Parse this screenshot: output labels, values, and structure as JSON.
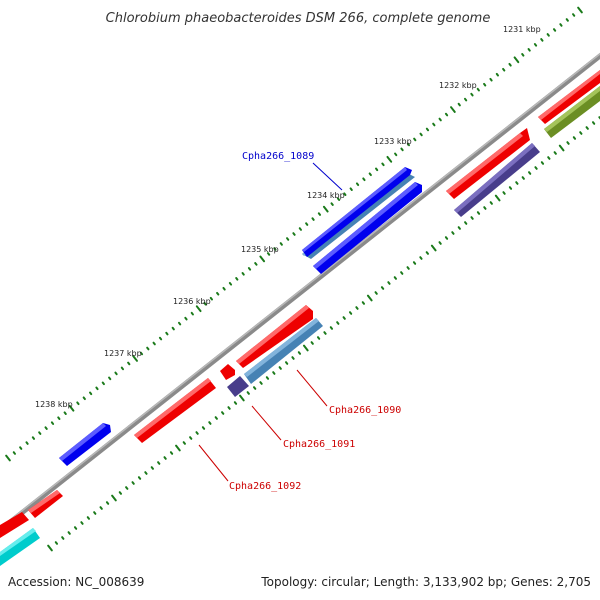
{
  "title": "Chlorobium phaeobacteroides DSM 266, complete genome",
  "footer": {
    "accession": "Accession: NC_008639",
    "summary": "Topology: circular; Length: 3,133,902 bp; Genes: 2,705"
  },
  "scale": {
    "kbp_labels": [
      "1231 kbp",
      "1232 kbp",
      "1233 kbp",
      "1234 kbp",
      "1235 kbp",
      "1236 kbp",
      "1237 kbp",
      "1238 kbp"
    ]
  },
  "gene_labels": [
    {
      "text": "Cpha266_1089",
      "color": "#0000cc"
    },
    {
      "text": "Cpha266_1090",
      "color": "#cc0000"
    },
    {
      "text": "Cpha266_1091",
      "color": "#cc0000"
    },
    {
      "text": "Cpha266_1092",
      "color": "#cc0000"
    }
  ],
  "colors": {
    "backbone": "#888888",
    "tick": "#1a7a1a",
    "red": "#ee0000",
    "blue": "#0000ee",
    "steel": "#4682b4",
    "navy": "#483d8b",
    "olive": "#6b8e23",
    "cyan": "#00cccc"
  }
}
